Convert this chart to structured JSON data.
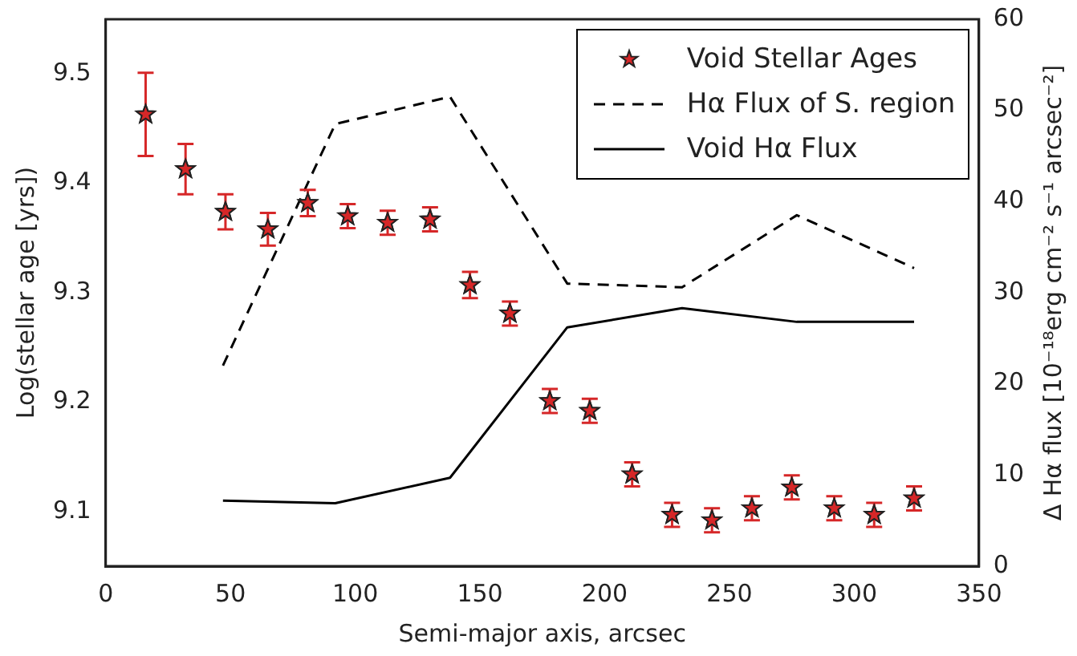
{
  "chart_data": {
    "type": "scatter",
    "xlabel": "Semi-major axis, arcsec",
    "ylabel": "Log(stellar age [yrs])",
    "y2label": "Δ Hα flux [10⁻¹⁸erg cm⁻² s⁻¹ arcsec⁻²]",
    "xlim": [
      0,
      350
    ],
    "xticks": [
      0,
      50,
      100,
      150,
      200,
      250,
      300,
      350
    ],
    "ylim": [
      9.05,
      9.55
    ],
    "yticks": [
      9.1,
      9.2,
      9.3,
      9.4,
      9.5
    ],
    "y2lim": [
      0,
      60
    ],
    "y2ticks": [
      0,
      10,
      20,
      30,
      40,
      50,
      60
    ],
    "legend": "top right",
    "grid": false,
    "series": [
      {
        "name": "Void Stellar Ages",
        "marker": "star",
        "color": "#d62728",
        "x": [
          16,
          32,
          48,
          65,
          81,
          97,
          113,
          130,
          146,
          162,
          178,
          194,
          211,
          227,
          243,
          259,
          275,
          292,
          308,
          324
        ],
        "values": [
          9.463,
          9.413,
          9.374,
          9.358,
          9.382,
          9.37,
          9.364,
          9.367,
          9.307,
          9.281,
          9.201,
          9.192,
          9.134,
          9.097,
          9.092,
          9.103,
          9.122,
          9.103,
          9.097,
          9.112
        ],
        "errors": [
          0.038,
          0.023,
          0.016,
          0.015,
          0.012,
          0.011,
          0.011,
          0.011,
          0.012,
          0.011,
          0.011,
          0.011,
          0.011,
          0.011,
          0.011,
          0.011,
          0.011,
          0.011,
          0.011,
          0.011
        ]
      },
      {
        "name": "Hα Flux of S. region",
        "type": "line",
        "axis": "y2",
        "line_style": "dashed",
        "marker": "none",
        "color": "#000000",
        "x": [
          47,
          92,
          138,
          185,
          231,
          277,
          324
        ],
        "values": [
          22,
          48.5,
          51.5,
          31,
          30.6,
          38.5,
          32.7
        ]
      },
      {
        "name": "Void Hα Flux",
        "type": "line",
        "axis": "y2",
        "line_style": "solid",
        "marker": "none",
        "color": "#000000",
        "x": [
          47,
          92,
          138,
          185,
          231,
          277,
          324
        ],
        "values": [
          7.2,
          6.9,
          9.7,
          26.2,
          28.3,
          26.8,
          26.8
        ]
      }
    ]
  }
}
